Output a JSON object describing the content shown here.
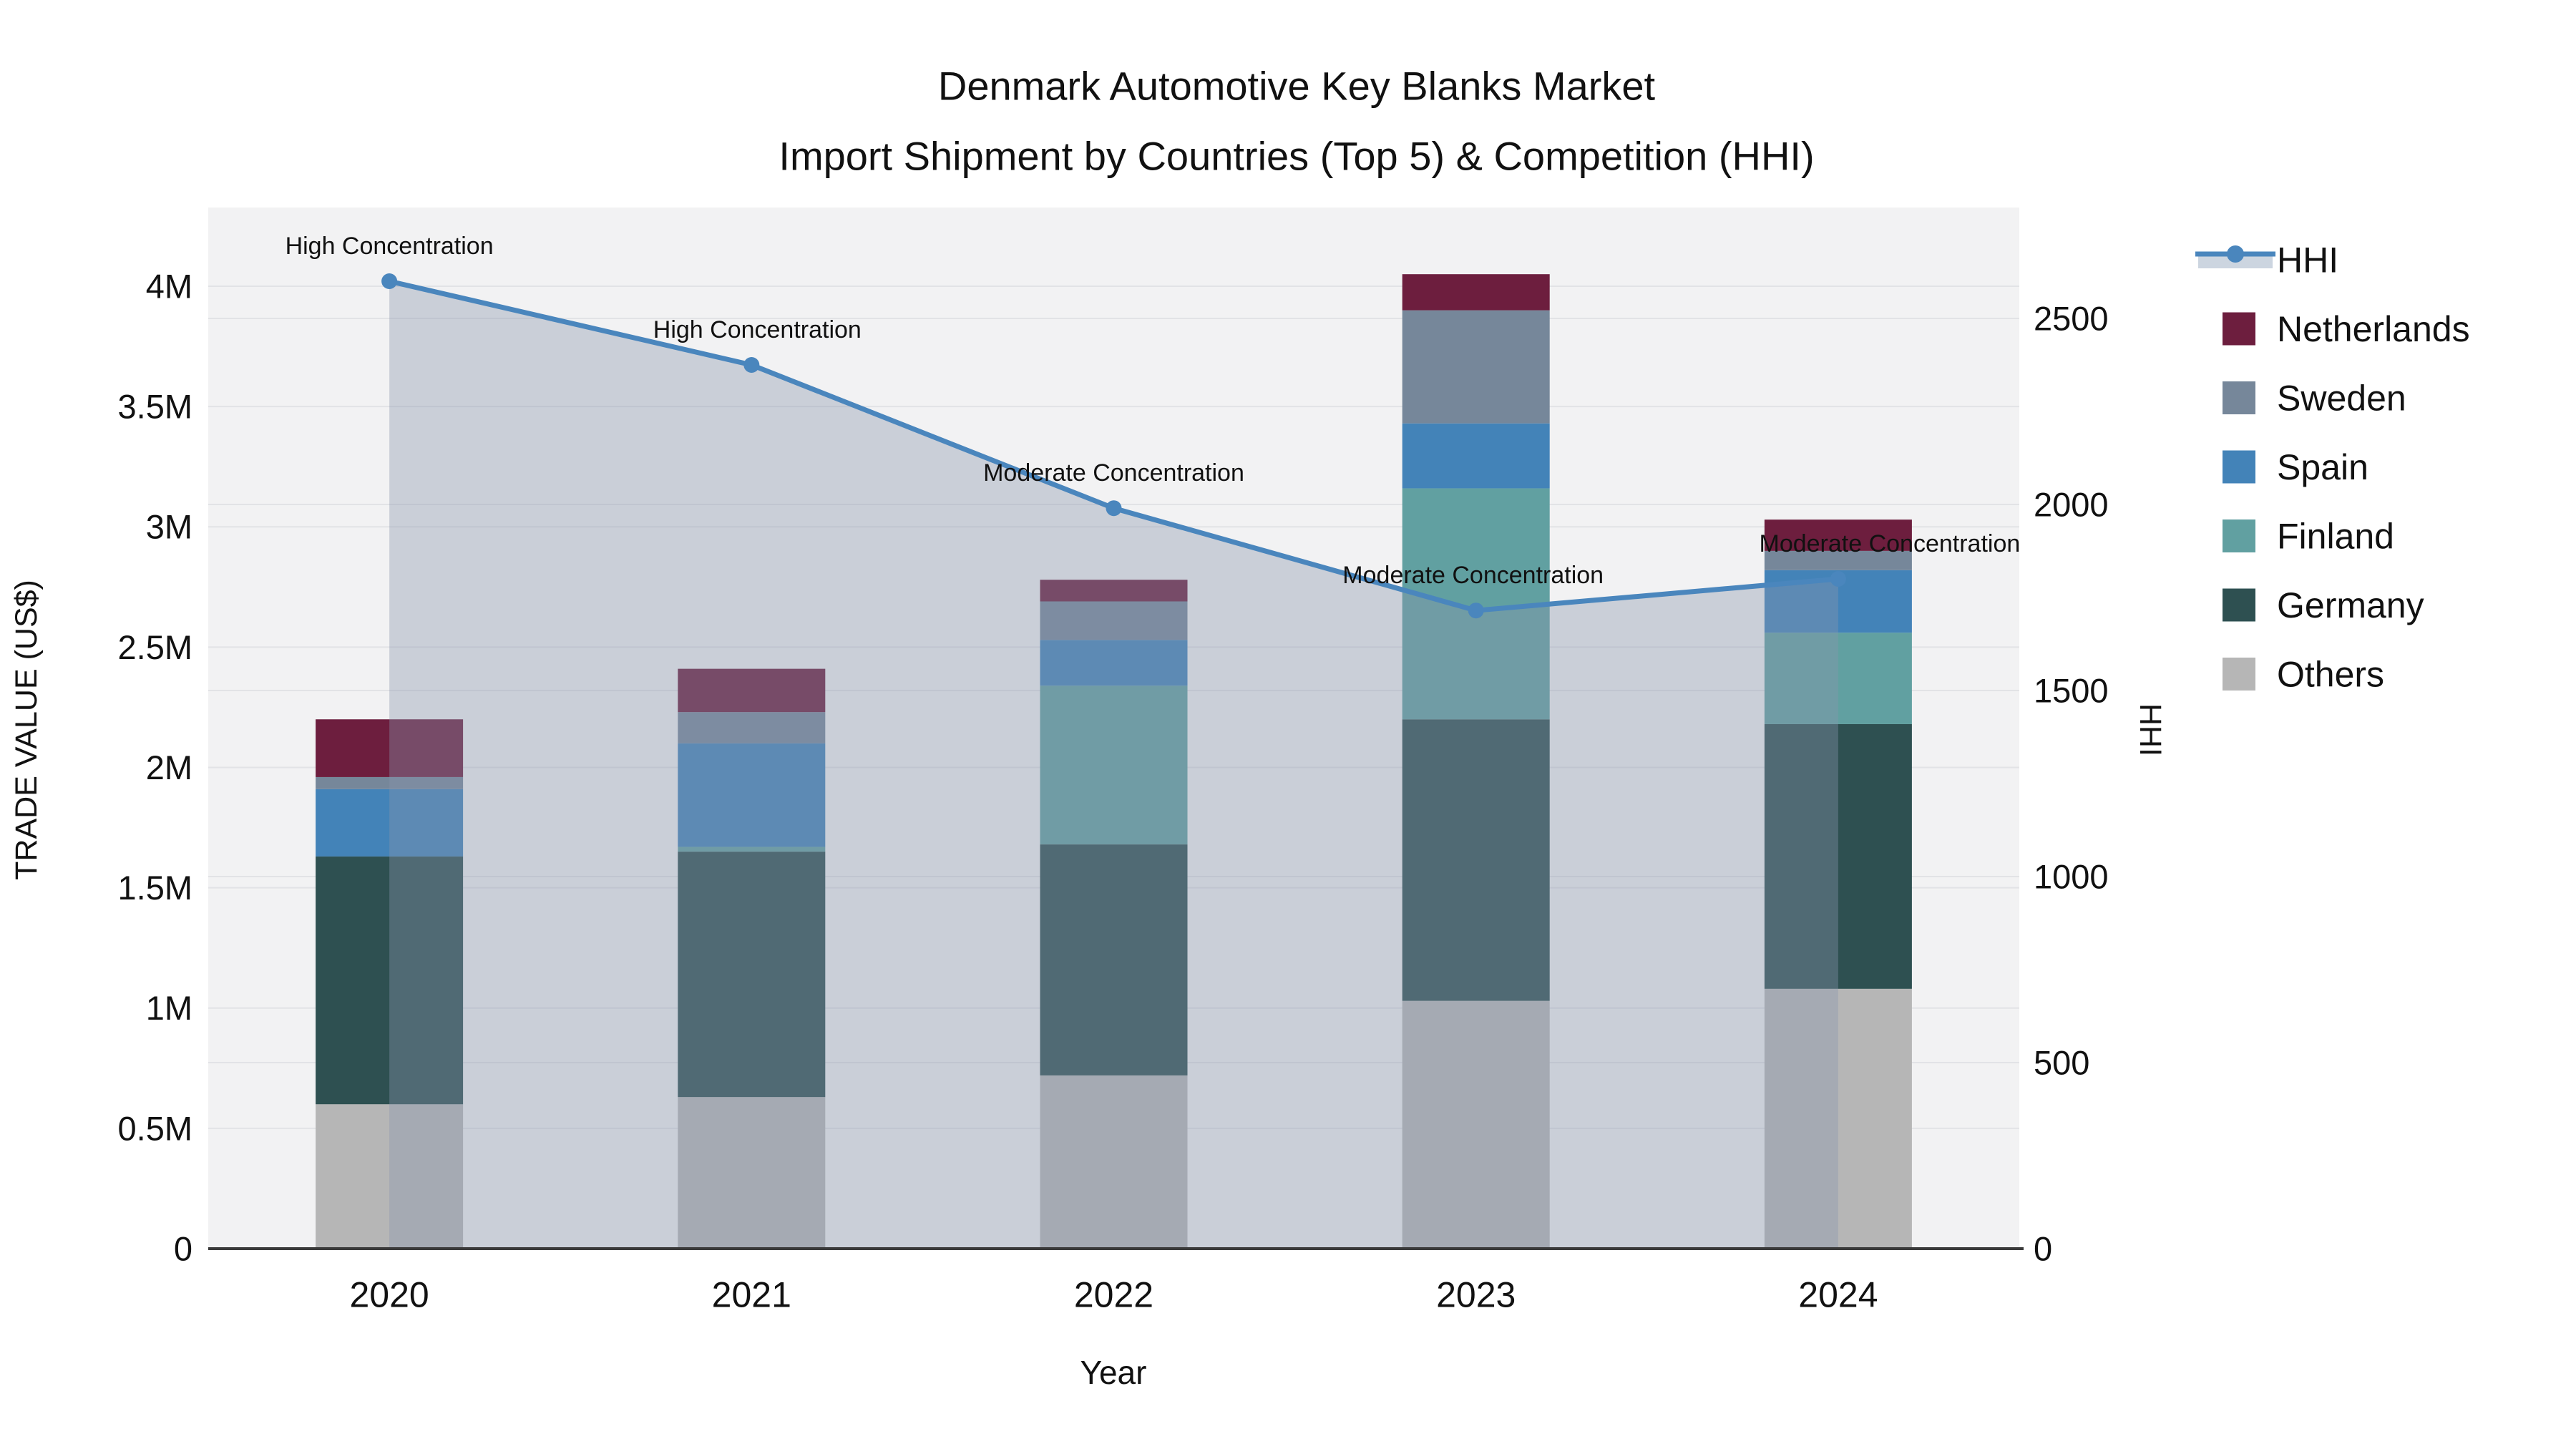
{
  "chart_data": {
    "type": "bar+line",
    "title_line1": "Denmark Automotive Key Blanks Market",
    "title_line2": "Import Shipment by Countries (Top 5) & Competition (HHI)",
    "title": "Denmark Automotive Key Blanks Market\nImport Shipment by Countries (Top 5) & Competition (HHI)",
    "xlabel": "Year",
    "ylabel_left": "TRADE VALUE (US$)",
    "ylabel_right": "HHI",
    "categories": [
      "2020",
      "2021",
      "2022",
      "2023",
      "2024"
    ],
    "unit_left": "million US$",
    "bar_type": "stacked",
    "stack_order_bottom_to_top": [
      "Others",
      "Germany",
      "Finland",
      "Spain",
      "Sweden",
      "Netherlands"
    ],
    "series": [
      {
        "name": "Others",
        "color": "#b6b6b6",
        "values": [
          0.6,
          0.63,
          0.72,
          1.03,
          1.08
        ]
      },
      {
        "name": "Germany",
        "color": "#2e5051",
        "values": [
          1.03,
          1.02,
          0.96,
          1.17,
          1.1
        ]
      },
      {
        "name": "Finland",
        "color": "#61a0a1",
        "values": [
          0.0,
          0.02,
          0.66,
          0.96,
          0.38
        ]
      },
      {
        "name": "Spain",
        "color": "#4383b8",
        "values": [
          0.28,
          0.43,
          0.19,
          0.27,
          0.26
        ]
      },
      {
        "name": "Sweden",
        "color": "#76879a",
        "values": [
          0.05,
          0.13,
          0.16,
          0.47,
          0.08
        ]
      },
      {
        "name": "Netherlands",
        "color": "#6d1e3e",
        "values": [
          0.24,
          0.18,
          0.09,
          0.15,
          0.13
        ]
      }
    ],
    "bar_totals": [
      2.2,
      2.41,
      2.78,
      4.05,
      3.03
    ],
    "hhi": {
      "name": "HHI",
      "values": [
        2600,
        2375,
        1990,
        1715,
        1800
      ],
      "annotations": [
        "High Concentration",
        "High Concentration",
        "Moderate Concentration",
        "Moderate Concentration",
        "Moderate Concentration"
      ],
      "line_color": "#4a86bd",
      "area_fill": "rgba(137,151,173,0.38)",
      "legend_band_color": "#ccd5e0"
    },
    "y_left_axis": {
      "ticks": [
        "0",
        "0.5M",
        "1M",
        "1.5M",
        "2M",
        "2.5M",
        "3M",
        "3.5M",
        "4M"
      ],
      "tick_values": [
        0,
        0.5,
        1,
        1.5,
        2,
        2.5,
        3,
        3.5,
        4
      ],
      "max": 4.33
    },
    "y_right_axis": {
      "ticks": [
        "0",
        "500",
        "1000",
        "1500",
        "2000",
        "2500"
      ],
      "tick_values": [
        0,
        500,
        1000,
        1500,
        2000,
        2500
      ],
      "max": 2798
    },
    "legend": {
      "position": "right",
      "entries": [
        {
          "label": "HHI",
          "type": "line"
        },
        {
          "label": "Netherlands",
          "type": "swatch",
          "color": "#6d1e3e"
        },
        {
          "label": "Sweden",
          "type": "swatch",
          "color": "#76879a"
        },
        {
          "label": "Spain",
          "type": "swatch",
          "color": "#4383b8"
        },
        {
          "label": "Finland",
          "type": "swatch",
          "color": "#61a0a1"
        },
        {
          "label": "Germany",
          "type": "swatch",
          "color": "#2e5051"
        },
        {
          "label": "Others",
          "type": "swatch",
          "color": "#b6b6b6"
        }
      ]
    },
    "colors": {
      "plot_background": "#f2f2f3",
      "figure_background": "#ffffff",
      "gridline": "#e2e3e6",
      "axis_spine": "#3a3a3a",
      "text": "#111111"
    },
    "grid": "horizontal gridlines for both y-axes",
    "annotation_note": "HHI > 2000 labeled High Concentration; 1000-2000 labeled Moderate Concentration"
  }
}
